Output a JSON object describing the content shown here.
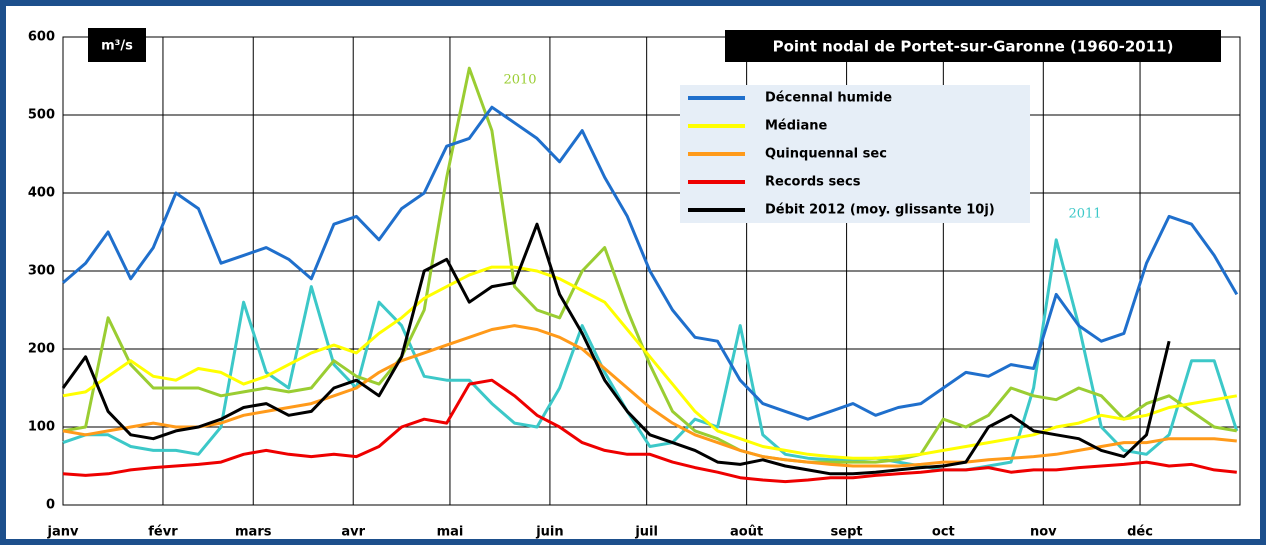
{
  "chart_data": {
    "type": "line",
    "title": "Point nodal de Portet-sur-Garonne (1960-2011)",
    "ylabel": "m³/s",
    "x": [
      0,
      7,
      14,
      21,
      28,
      35,
      42,
      49,
      56,
      63,
      70,
      77,
      84,
      91,
      98,
      105,
      112,
      119,
      126,
      133,
      140,
      147,
      154,
      161,
      168,
      175,
      182,
      189,
      196,
      203,
      210,
      217,
      224,
      231,
      238,
      245,
      252,
      259,
      266,
      273,
      280,
      287,
      294,
      301,
      308,
      315,
      322,
      329,
      336,
      343,
      350,
      357,
      364
    ],
    "xlim": [
      0,
      365
    ],
    "xticks": [
      {
        "value": 0,
        "label": "janv"
      },
      {
        "value": 31,
        "label": "févr"
      },
      {
        "value": 59,
        "label": "mars"
      },
      {
        "value": 90,
        "label": "avr"
      },
      {
        "value": 120,
        "label": "mai"
      },
      {
        "value": 151,
        "label": "juin"
      },
      {
        "value": 181,
        "label": "juil"
      },
      {
        "value": 212,
        "label": "août"
      },
      {
        "value": 243,
        "label": "sept"
      },
      {
        "value": 273,
        "label": "oct"
      },
      {
        "value": 304,
        "label": "nov"
      },
      {
        "value": 334,
        "label": "déc"
      }
    ],
    "ylim": [
      0,
      600
    ],
    "yticks": [
      0,
      100,
      200,
      300,
      400,
      500,
      600
    ],
    "grid": true,
    "legend": "top-center",
    "series": [
      {
        "name": "Décennal humide",
        "color": "#1f6fcc",
        "values": [
          285,
          310,
          350,
          290,
          330,
          400,
          380,
          310,
          320,
          330,
          315,
          290,
          360,
          370,
          340,
          380,
          400,
          460,
          470,
          510,
          490,
          470,
          440,
          480,
          420,
          370,
          300,
          250,
          215,
          210,
          160,
          130,
          120,
          110,
          120,
          130,
          115,
          125,
          130,
          150,
          170,
          165,
          180,
          175,
          270,
          230,
          210,
          220,
          310,
          370,
          360,
          320,
          270
        ]
      },
      {
        "name": "Médiane",
        "color": "#ffff00",
        "values": [
          140,
          145,
          165,
          185,
          165,
          160,
          175,
          170,
          155,
          165,
          180,
          195,
          205,
          195,
          220,
          240,
          265,
          280,
          295,
          305,
          305,
          300,
          290,
          275,
          260,
          225,
          190,
          155,
          120,
          95,
          85,
          75,
          70,
          65,
          62,
          60,
          60,
          62,
          65,
          70,
          75,
          80,
          85,
          90,
          100,
          105,
          115,
          110,
          115,
          125,
          130,
          135,
          140
        ]
      },
      {
        "name": "Quinquennal sec",
        "color": "#ff9a1a",
        "values": [
          95,
          90,
          95,
          100,
          105,
          100,
          100,
          105,
          115,
          120,
          125,
          130,
          140,
          150,
          170,
          185,
          195,
          205,
          215,
          225,
          230,
          225,
          215,
          200,
          175,
          150,
          125,
          105,
          90,
          80,
          70,
          62,
          58,
          55,
          52,
          50,
          50,
          50,
          52,
          55,
          55,
          58,
          60,
          62,
          65,
          70,
          75,
          80,
          80,
          85,
          85,
          85,
          82
        ]
      },
      {
        "name": "Records secs",
        "color": "#ee0000",
        "values": [
          40,
          38,
          40,
          45,
          48,
          50,
          52,
          55,
          65,
          70,
          65,
          62,
          65,
          62,
          75,
          100,
          110,
          105,
          155,
          160,
          140,
          115,
          100,
          80,
          70,
          65,
          65,
          55,
          48,
          42,
          35,
          32,
          30,
          32,
          35,
          35,
          38,
          40,
          42,
          45,
          45,
          48,
          42,
          45,
          45,
          48,
          50,
          52,
          55,
          50,
          52,
          45,
          42
        ]
      },
      {
        "name": "Débit 2012 (moy. glissante 10j)",
        "color": "#000000",
        "values": [
          150,
          190,
          120,
          90,
          85,
          95,
          100,
          110,
          125,
          130,
          115,
          120,
          150,
          160,
          140,
          190,
          300,
          315,
          260,
          280,
          285,
          360,
          270,
          220,
          160,
          120,
          90,
          80,
          70,
          55,
          52,
          58,
          50,
          45,
          40,
          40,
          42,
          45,
          48,
          50,
          55,
          100,
          115,
          95,
          90,
          85,
          70,
          62,
          90,
          210,
          null,
          null,
          null
        ]
      },
      {
        "name": "2010",
        "color": "#9acd32",
        "values": [
          95,
          100,
          240,
          180,
          150,
          150,
          150,
          140,
          145,
          150,
          145,
          150,
          185,
          165,
          155,
          190,
          250,
          420,
          560,
          480,
          280,
          250,
          240,
          300,
          330,
          250,
          180,
          120,
          95,
          85,
          70,
          62,
          58,
          55,
          55,
          55,
          55,
          58,
          65,
          110,
          100,
          115,
          150,
          140,
          135,
          150,
          140,
          110,
          130,
          140,
          120,
          100,
          95
        ]
      },
      {
        "name": "2011",
        "color": "#3cc8c8",
        "values": [
          80,
          90,
          90,
          75,
          70,
          70,
          65,
          100,
          260,
          170,
          150,
          280,
          180,
          150,
          260,
          230,
          165,
          160,
          160,
          130,
          105,
          100,
          150,
          230,
          170,
          120,
          75,
          80,
          110,
          100,
          230,
          90,
          65,
          60,
          58,
          58,
          60,
          55,
          50,
          45,
          45,
          50,
          55,
          150,
          340,
          230,
          100,
          70,
          65,
          90,
          185,
          185,
          95
        ]
      }
    ]
  }
}
